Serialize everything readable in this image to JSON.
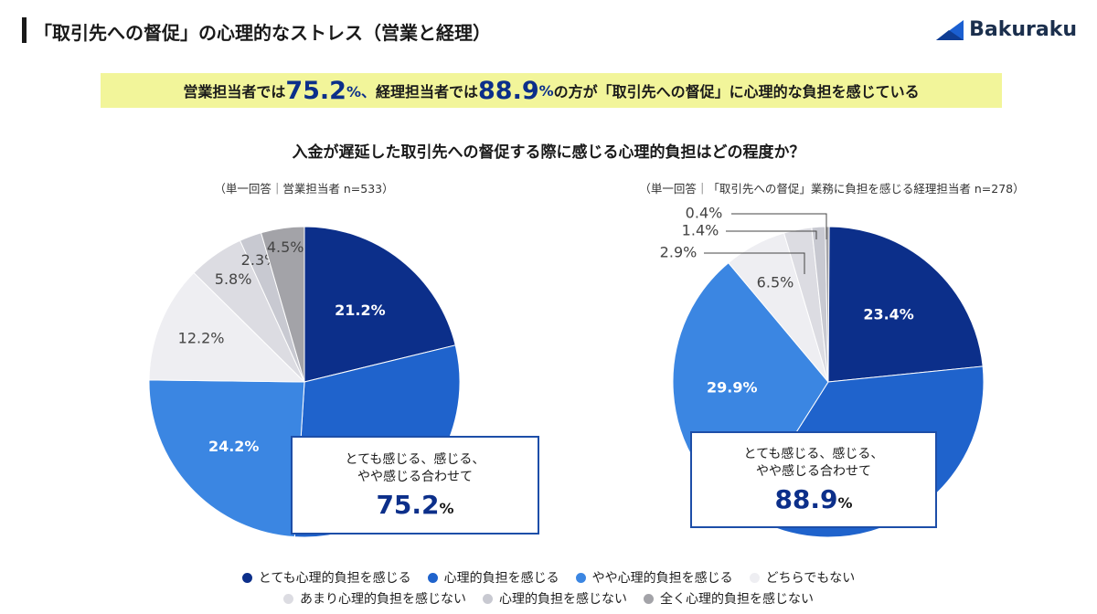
{
  "header": {
    "title": "「取引先への督促」の心理的なストレス（営業と経理）",
    "brand": "Bakuraku"
  },
  "headline": {
    "p1": "営業担当者では",
    "v1": "75.2",
    "pct1": "%、",
    "p2": "経理担当者では",
    "v2": "88.9",
    "pct2": "%",
    "p3": "の方が「取引先への督促」に心理的な負担を感じている"
  },
  "question": "入金が遅延した取引先への督促する際に感じる心理的負担はどの程度か？",
  "callout_lines": [
    "とても感じる、感じる、",
    "やや感じる合わせて"
  ],
  "chart_data": [
    {
      "type": "pie",
      "note": "（単一回答｜営業担当者 n=533）",
      "series": [
        {
          "label": "とても心理的負担を感じる",
          "value": 21.2,
          "display": "21.2%"
        },
        {
          "label": "心理的負担を感じる",
          "value": 29.8,
          "display": "29.8%"
        },
        {
          "label": "やや心理的負担を感じる",
          "value": 24.2,
          "display": "24.2%"
        },
        {
          "label": "どちらでもない",
          "value": 12.2,
          "display": "12.2%"
        },
        {
          "label": "あまり心理的負担を感じない",
          "value": 5.8,
          "display": "5.8%"
        },
        {
          "label": "心理的負担を感じない",
          "value": 2.3,
          "display": "2.3%"
        },
        {
          "label": "全く心理的負担を感じない",
          "value": 4.5,
          "display": "4.5%"
        }
      ],
      "total": "75.2",
      "total_pct": "%"
    },
    {
      "type": "pie",
      "note": "（単一回答｜「取引先への督促」業務に負担を感じる経理担当者 n=278）",
      "series": [
        {
          "label": "とても心理的負担を感じる",
          "value": 23.4,
          "display": "23.4%"
        },
        {
          "label": "心理的負担を感じる",
          "value": 35.6,
          "display": "35.6%"
        },
        {
          "label": "やや心理的負担を感じる",
          "value": 29.9,
          "display": "29.9%"
        },
        {
          "label": "どちらでもない",
          "value": 6.5,
          "display": "6.5%"
        },
        {
          "label": "あまり心理的負担を感じない",
          "value": 2.9,
          "display": "2.9%"
        },
        {
          "label": "心理的負担を感じない",
          "value": 1.4,
          "display": "1.4%"
        },
        {
          "label": "全く心理的負担を感じない",
          "value": 0.4,
          "display": "0.4%"
        }
      ],
      "total": "88.9",
      "total_pct": "%"
    }
  ],
  "legend": [
    {
      "label": "とても心理的負担を感じる",
      "color": "#0c2f8a"
    },
    {
      "label": "心理的負担を感じる",
      "color": "#1f63cc"
    },
    {
      "label": "やや心理的負担を感じる",
      "color": "#3b86e2"
    },
    {
      "label": "どちらでもない",
      "color": "#eeeef2"
    },
    {
      "label": "あまり心理的負担を感じない",
      "color": "#dcdce2"
    },
    {
      "label": "心理的負担を感じない",
      "color": "#c8c9d1"
    },
    {
      "label": "全く心理的負担を感じない",
      "color": "#a3a3a8"
    }
  ]
}
